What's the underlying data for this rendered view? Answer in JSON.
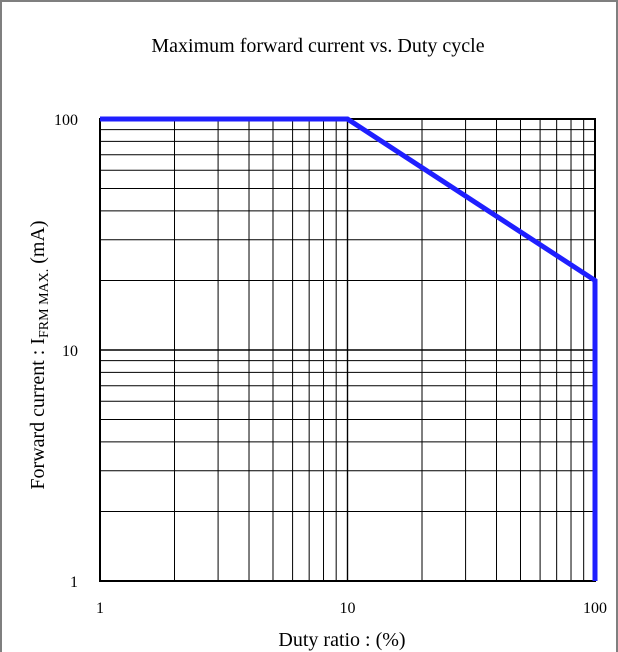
{
  "chart_data": {
    "type": "line",
    "title": "Maximum forward current vs. Duty cycle",
    "xlabel": "Duty ratio : (%)",
    "ylabel": {
      "prefix": "Forward current : I",
      "subscript": "FRM MAX.",
      "suffix": " (mA)"
    },
    "x_scale": "log",
    "y_scale": "log",
    "xlim": [
      1,
      100
    ],
    "ylim": [
      1,
      100
    ],
    "grid": true,
    "x_ticks": [
      {
        "value": 1,
        "label": "1"
      },
      {
        "value": 10,
        "label": "10"
      },
      {
        "value": 100,
        "label": "100"
      }
    ],
    "y_ticks": [
      {
        "value": 1,
        "label": "1"
      },
      {
        "value": 10,
        "label": "10"
      },
      {
        "value": 100,
        "label": "100"
      }
    ],
    "series": [
      {
        "color": "#1f1fff",
        "x": [
          1,
          10,
          100,
          100
        ],
        "y": [
          100,
          100,
          20,
          1
        ]
      }
    ]
  }
}
